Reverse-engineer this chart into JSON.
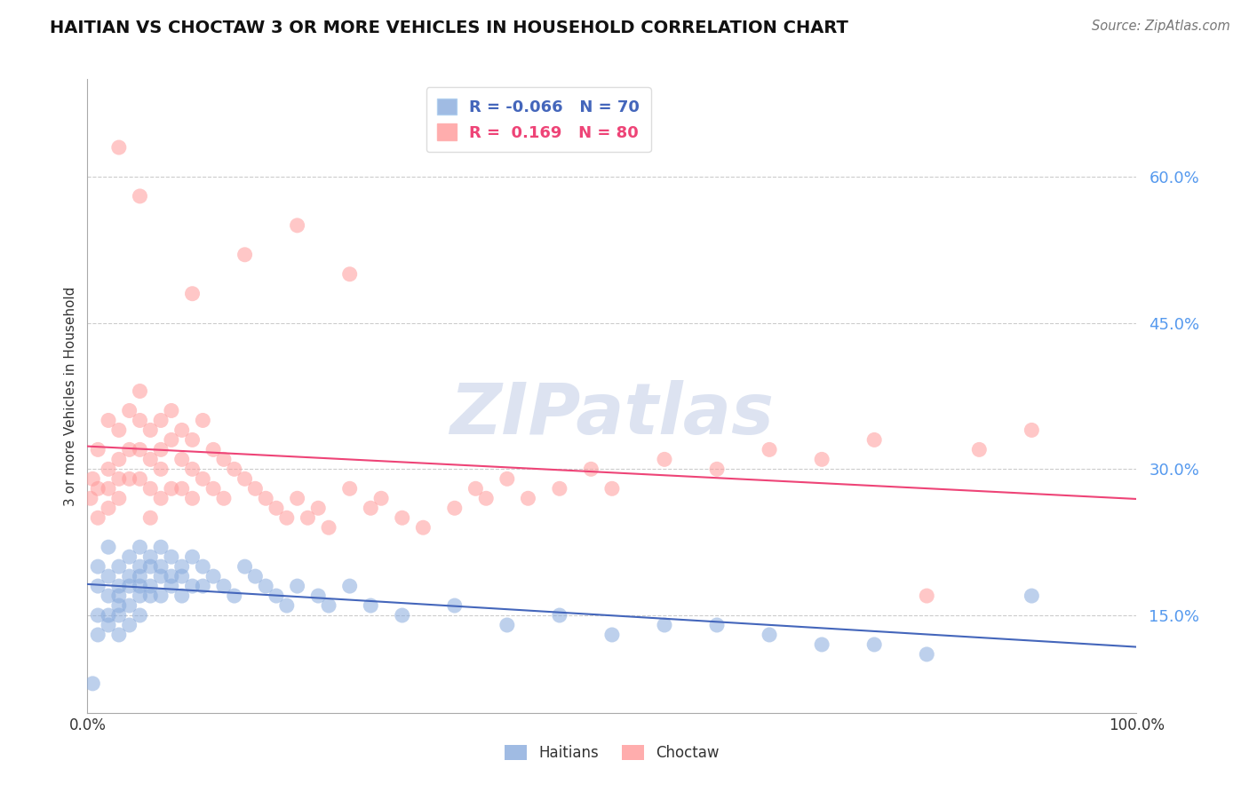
{
  "title": "HAITIAN VS CHOCTAW 3 OR MORE VEHICLES IN HOUSEHOLD CORRELATION CHART",
  "source": "Source: ZipAtlas.com",
  "ylabel": "3 or more Vehicles in Household",
  "xlim": [
    0,
    100
  ],
  "ylim": [
    5,
    70
  ],
  "yticks": [
    15.0,
    30.0,
    45.0,
    60.0
  ],
  "haitians": {
    "R": -0.066,
    "N": 70,
    "color": "#88AADD",
    "line_color": "#4466BB",
    "label": "Haitians",
    "x": [
      0.5,
      1,
      1,
      1,
      1,
      2,
      2,
      2,
      2,
      2,
      3,
      3,
      3,
      3,
      3,
      3,
      4,
      4,
      4,
      4,
      4,
      5,
      5,
      5,
      5,
      5,
      5,
      6,
      6,
      6,
      6,
      7,
      7,
      7,
      7,
      8,
      8,
      8,
      9,
      9,
      9,
      10,
      10,
      11,
      11,
      12,
      13,
      14,
      15,
      16,
      17,
      18,
      19,
      20,
      22,
      23,
      25,
      27,
      30,
      35,
      40,
      45,
      50,
      55,
      60,
      65,
      70,
      75,
      80,
      90
    ],
    "y": [
      8,
      18,
      15,
      13,
      20,
      19,
      17,
      15,
      14,
      22,
      20,
      18,
      17,
      16,
      15,
      13,
      21,
      19,
      18,
      16,
      14,
      22,
      20,
      19,
      18,
      17,
      15,
      21,
      20,
      18,
      17,
      22,
      20,
      19,
      17,
      21,
      19,
      18,
      20,
      19,
      17,
      21,
      18,
      20,
      18,
      19,
      18,
      17,
      20,
      19,
      18,
      17,
      16,
      18,
      17,
      16,
      18,
      16,
      15,
      16,
      14,
      15,
      13,
      14,
      14,
      13,
      12,
      12,
      11,
      17
    ]
  },
  "choctaw": {
    "R": 0.169,
    "N": 80,
    "color": "#FF9999",
    "line_color": "#EE4477",
    "label": "Choctaw",
    "x": [
      0.3,
      0.5,
      1,
      1,
      1,
      2,
      2,
      2,
      2,
      3,
      3,
      3,
      3,
      4,
      4,
      4,
      5,
      5,
      5,
      5,
      6,
      6,
      6,
      6,
      7,
      7,
      7,
      7,
      8,
      8,
      8,
      9,
      9,
      9,
      10,
      10,
      10,
      11,
      11,
      12,
      12,
      13,
      13,
      14,
      15,
      16,
      17,
      18,
      19,
      20,
      21,
      22,
      23,
      25,
      27,
      28,
      30,
      32,
      35,
      37,
      38,
      40,
      42,
      45,
      48,
      50,
      55,
      60,
      65,
      70,
      75,
      80,
      85,
      90,
      20,
      25,
      10,
      15,
      5,
      3
    ],
    "y": [
      27,
      29,
      32,
      28,
      25,
      35,
      30,
      28,
      26,
      34,
      31,
      29,
      27,
      36,
      32,
      29,
      38,
      35,
      32,
      29,
      34,
      31,
      28,
      25,
      35,
      32,
      30,
      27,
      36,
      33,
      28,
      34,
      31,
      28,
      33,
      30,
      27,
      35,
      29,
      32,
      28,
      31,
      27,
      30,
      29,
      28,
      27,
      26,
      25,
      27,
      25,
      26,
      24,
      28,
      26,
      27,
      25,
      24,
      26,
      28,
      27,
      29,
      27,
      28,
      30,
      28,
      31,
      30,
      32,
      31,
      33,
      17,
      32,
      34,
      55,
      50,
      48,
      52,
      58,
      63
    ]
  },
  "watermark": "ZIPatlas",
  "watermark_color": "#AABBDD",
  "background_color": "#FFFFFF"
}
